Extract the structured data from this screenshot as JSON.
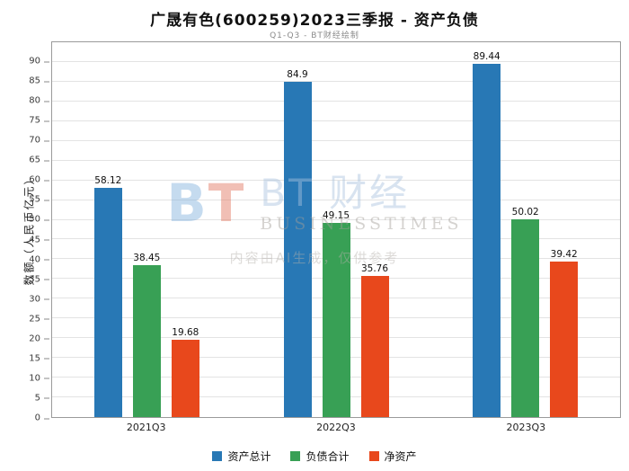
{
  "title": "广晟有色(600259)2023三季报 - 资产负债",
  "subtitle": "Q1-Q3 - BT财经绘制",
  "watermark": {
    "logo_b": "B",
    "logo_t": "T",
    "brand": "BT 财经",
    "brand_sub": "BUSINESSTIMES",
    "disclaimer": "内容由AI生成，仅供参考"
  },
  "chart_data": {
    "type": "bar",
    "categories": [
      "2021Q3",
      "2022Q3",
      "2023Q3"
    ],
    "series": [
      {
        "name": "资产总计",
        "color": "#2878B5",
        "values": [
          58.12,
          84.9,
          89.44
        ]
      },
      {
        "name": "负债合计",
        "color": "#38A055",
        "values": [
          38.45,
          49.15,
          50.02
        ]
      },
      {
        "name": "净资产",
        "color": "#E8481C",
        "values": [
          19.68,
          35.76,
          39.42
        ]
      }
    ],
    "xlabel": "",
    "ylabel": "数额（人民币亿元）",
    "ylim": [
      0,
      95
    ],
    "ytick_step": 5,
    "ytick_max": 90,
    "grid": true,
    "legend_position": "bottom"
  }
}
